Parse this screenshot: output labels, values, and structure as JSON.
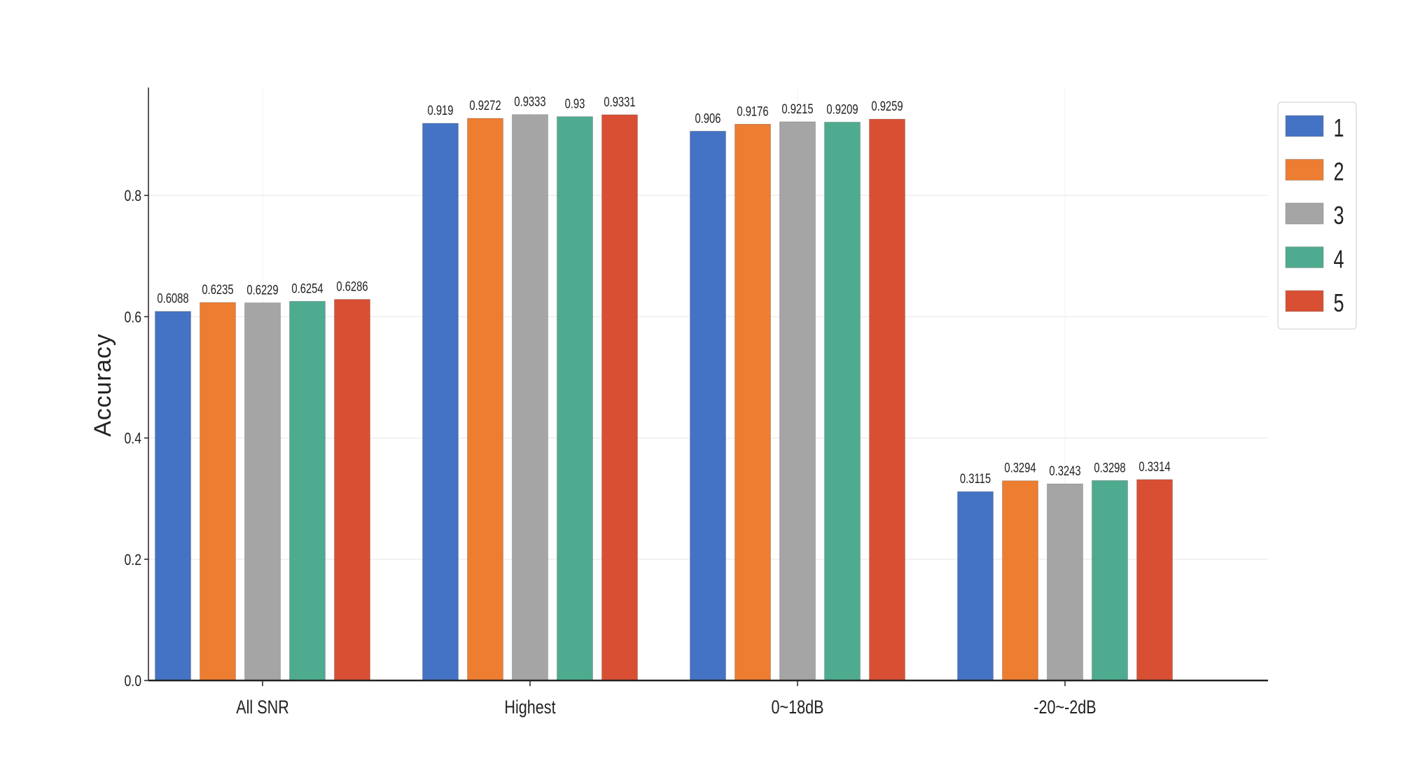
{
  "chart_data": {
    "type": "bar",
    "title": "",
    "xlabel": "",
    "ylabel": "Accuracy",
    "ylim": [
      0,
      0.978
    ],
    "yticks": [
      "0.0",
      "0.2",
      "0.4",
      "0.6",
      "0.8"
    ],
    "grid": true,
    "legend_position": "top-right",
    "categories": [
      "All SNR",
      "Highest",
      "0~18dB",
      "-20~-2dB"
    ],
    "series": [
      {
        "name": "1",
        "color": "#4472c4",
        "values": [
          0.6088,
          0.919,
          0.906,
          0.3115
        ],
        "labels": [
          "0.6088",
          "0.919",
          "0.906",
          "0.3115"
        ]
      },
      {
        "name": "2",
        "color": "#ed7d31",
        "values": [
          0.6235,
          0.9272,
          0.9176,
          0.3294
        ],
        "labels": [
          "0.6235",
          "0.9272",
          "0.9176",
          "0.3294"
        ]
      },
      {
        "name": "3",
        "color": "#a5a5a5",
        "values": [
          0.6229,
          0.9333,
          0.9215,
          0.3243
        ],
        "labels": [
          "0.6229",
          "0.9333",
          "0.9215",
          "0.3243"
        ]
      },
      {
        "name": "4",
        "color": "#4fab8f",
        "values": [
          0.6254,
          0.93,
          0.9209,
          0.3298
        ],
        "labels": [
          "0.6254",
          "0.93",
          "0.9209",
          "0.3298"
        ]
      },
      {
        "name": "5",
        "color": "#d94f33",
        "values": [
          0.6286,
          0.9331,
          0.9259,
          0.3314
        ],
        "labels": [
          "0.6286",
          "0.9331",
          "0.9259",
          "0.3314"
        ]
      }
    ]
  }
}
